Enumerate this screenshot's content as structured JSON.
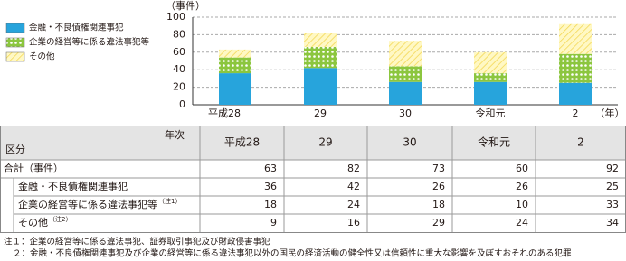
{
  "chart_data": {
    "type": "bar",
    "stacked": true,
    "y_label": "（事件）",
    "x_label": "（年）",
    "categories": [
      "平成28",
      "29",
      "30",
      "令和元",
      "2"
    ],
    "series": [
      {
        "name": "金融・不良債権関連事犯",
        "color": "#27a4dc",
        "pattern": "solid",
        "values": [
          36,
          42,
          26,
          26,
          25
        ]
      },
      {
        "name": "企業の経営等に係る違法事犯等",
        "color": "#8cc63f",
        "pattern": "dots",
        "values": [
          18,
          24,
          18,
          10,
          33
        ]
      },
      {
        "name": "その他",
        "color": "#f3d64e",
        "pattern": "hatch",
        "values": [
          9,
          16,
          29,
          24,
          34
        ]
      }
    ],
    "ylim": [
      0,
      100
    ],
    "yticks": [
      0,
      20,
      40,
      60,
      80,
      100
    ],
    "grid": true
  },
  "table": {
    "corner_top": "年次",
    "corner_bottom": "区分",
    "total_label": "合計（事件）",
    "totals": [
      63,
      82,
      73,
      60,
      92
    ],
    "row_notes": [
      null,
      "（注1）",
      "（注2）"
    ]
  },
  "notes": [
    "注１：企業の経営等に係る違法事犯、証券取引事犯及び財政侵害事犯",
    "２：金融・不良債権関連事犯及び企業の経営等に係る違法事犯以外の国民の経済活動の健全性又は信頼性に重大な影響を及ぼすおそれのある犯罪"
  ]
}
